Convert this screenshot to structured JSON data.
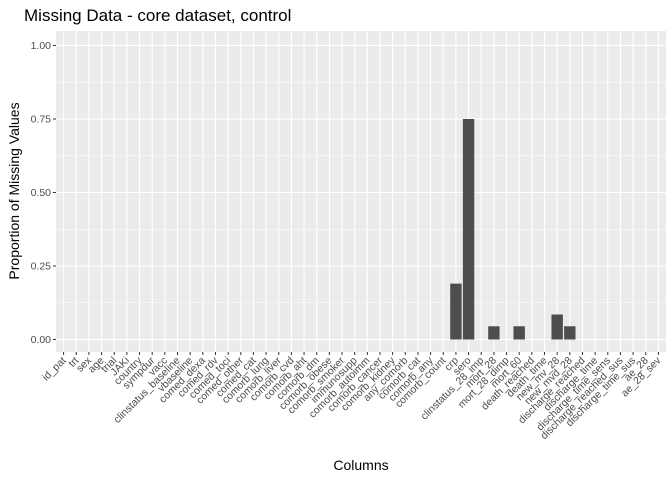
{
  "chart_data": {
    "type": "bar",
    "title": "Missing Data - core dataset, control",
    "xlabel": "Columns",
    "ylabel": "Proportion of Missing Values",
    "ylim": [
      0,
      1
    ],
    "yticks": [
      "0.00",
      "0.25",
      "0.50",
      "0.75",
      "1.00"
    ],
    "ytick_values": [
      0,
      0.25,
      0.5,
      0.75,
      1.0
    ],
    "grid": true,
    "legend": "none",
    "colors": {
      "panel": "#ebebeb",
      "grid": "#ffffff",
      "bar": "#4d4d4d",
      "tick": "#4d4d4d"
    },
    "categories": [
      "id_pat",
      "trt",
      "sex",
      "age",
      "trial",
      "JAKi",
      "country",
      "sympdur",
      "vacc",
      "clinstatus_baseline",
      "vbaseline",
      "comed_dexa",
      "comed_rdv",
      "comed_toci",
      "comed_other",
      "comed_cat",
      "comorb_lung",
      "comorb_liver",
      "comorb_cvd",
      "comorb_aht",
      "comorb_dm",
      "comorb_obese",
      "comorb_smoker",
      "immunosupp",
      "comorb_autoimm",
      "comorb_cancer",
      "comorb_kidney",
      "any_comorb",
      "comorb_cat",
      "comorb_any",
      "comorb_count",
      "crp",
      "sero",
      "clinstatus_28_imp",
      "mort_28",
      "mort_28_dimp",
      "mort_60",
      "death_reached",
      "death_time",
      "new_mv_28",
      "new_mvd_28",
      "discharge_reached",
      "discharge_time",
      "discharge_time_sens",
      "discharge_reached_sus",
      "discharge_time_sus",
      "ae_28",
      "ae_28_sev"
    ],
    "values": [
      0,
      0,
      0,
      0,
      0,
      0,
      0,
      0,
      0,
      0,
      0,
      0,
      0,
      0,
      0,
      0,
      0,
      0,
      0,
      0,
      0,
      0,
      0,
      0,
      0,
      0,
      0,
      0,
      0,
      0,
      0,
      0.19,
      0.75,
      0,
      0.045,
      0,
      0.045,
      0,
      0,
      0.085,
      0.045,
      0,
      0,
      0,
      0,
      0,
      0,
      0
    ]
  }
}
